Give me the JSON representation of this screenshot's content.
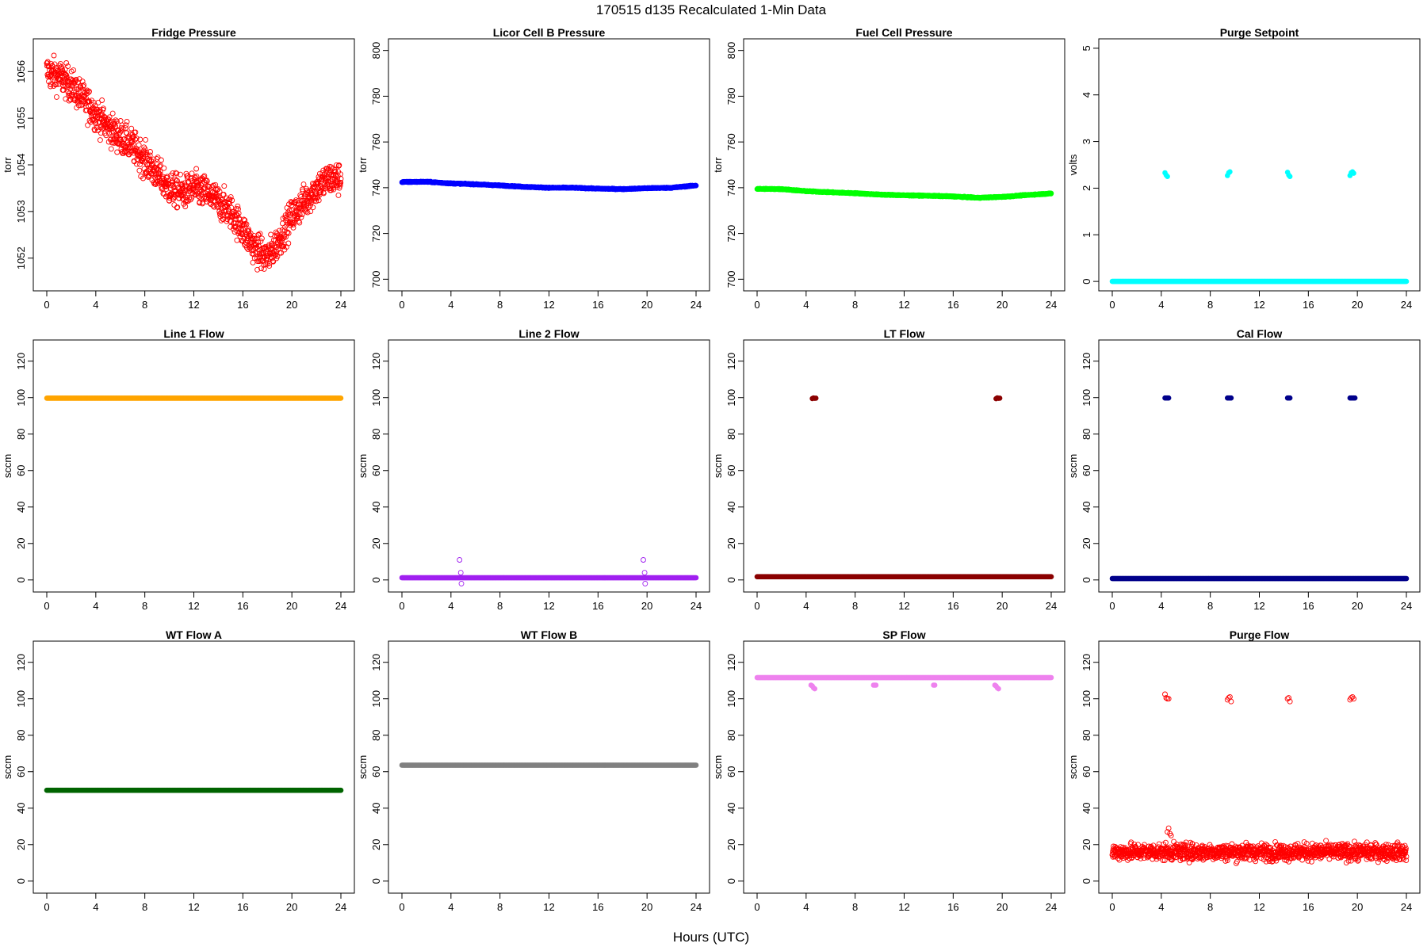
{
  "figure": {
    "title": "170515   d135   Recalculated 1-Min Data",
    "xlabel": "Hours (UTC)"
  },
  "chart_data": [
    {
      "type": "scatter",
      "title": "Fridge Pressure",
      "ylabel": "torr",
      "xlim": [
        0,
        24
      ],
      "ylim": [
        1051.4,
        1056.6
      ],
      "xticks": [
        0,
        4,
        8,
        12,
        16,
        20,
        24
      ],
      "yticks": [
        1052,
        1053,
        1054,
        1055,
        1056
      ],
      "color": "#ff0000",
      "marker": "open-circle",
      "series": [
        {
          "x": [
            0,
            1,
            2,
            3,
            4,
            5,
            6,
            7,
            8,
            9,
            10,
            11,
            12,
            13,
            14,
            15,
            16,
            17,
            18,
            19,
            20,
            21,
            22,
            23,
            24
          ],
          "y": [
            1056.0,
            1055.9,
            1055.7,
            1055.4,
            1055.1,
            1054.8,
            1054.6,
            1054.4,
            1054.1,
            1053.8,
            1053.5,
            1053.4,
            1053.5,
            1053.4,
            1053.2,
            1053.0,
            1052.6,
            1052.2,
            1052.0,
            1052.4,
            1052.9,
            1053.2,
            1053.5,
            1053.7,
            1053.7
          ],
          "scatter": 0.35
        }
      ]
    },
    {
      "type": "scatter",
      "title": "Licor Cell B Pressure",
      "ylabel": "torr",
      "xlim": [
        0,
        24
      ],
      "ylim": [
        697,
        803
      ],
      "xticks": [
        0,
        4,
        8,
        12,
        16,
        20,
        24
      ],
      "yticks": [
        700,
        720,
        740,
        760,
        780,
        800
      ],
      "color": "#0000ff",
      "marker": "filled-circle",
      "series": [
        {
          "x": [
            0,
            2,
            4,
            6,
            8,
            10,
            12,
            14,
            16,
            18,
            20,
            22,
            24
          ],
          "y": [
            742.5,
            742.6,
            741.9,
            741.5,
            741.0,
            740.4,
            740.0,
            740.0,
            739.6,
            739.4,
            739.8,
            740.0,
            741.0
          ],
          "scatter": 0.2
        }
      ]
    },
    {
      "type": "scatter",
      "title": "Fuel Cell Pressure",
      "ylabel": "torr",
      "xlim": [
        0,
        24
      ],
      "ylim": [
        697,
        803
      ],
      "xticks": [
        0,
        4,
        8,
        12,
        16,
        20,
        24
      ],
      "yticks": [
        700,
        720,
        740,
        760,
        780,
        800
      ],
      "color": "#00ff00",
      "marker": "filled-circle",
      "series": [
        {
          "x": [
            0,
            2,
            4,
            6,
            8,
            10,
            12,
            14,
            16,
            18,
            20,
            22,
            24
          ],
          "y": [
            739.5,
            739.4,
            738.5,
            738.0,
            737.6,
            737.0,
            736.7,
            736.5,
            736.2,
            735.6,
            736.0,
            736.8,
            737.5
          ],
          "scatter": 0.2
        }
      ]
    },
    {
      "type": "scatter",
      "title": "Purge Setpoint",
      "ylabel": "volts",
      "xlim": [
        0,
        24
      ],
      "ylim": [
        -0.1,
        5.1
      ],
      "xticks": [
        0,
        4,
        8,
        12,
        16,
        20,
        24
      ],
      "yticks": [
        0,
        1,
        2,
        3,
        4,
        5
      ],
      "color": "#00ffff",
      "marker": "filled-circle",
      "series": [
        {
          "x": [
            0,
            24
          ],
          "y": [
            0,
            0
          ],
          "scatter": 0
        },
        {
          "x": [
            4.3,
            4.4,
            4.5,
            9.4,
            9.5,
            9.6,
            14.3,
            14.4,
            14.5,
            19.4,
            19.5,
            19.6,
            19.7
          ],
          "y": [
            2.33,
            2.28,
            2.25,
            2.27,
            2.33,
            2.35,
            2.34,
            2.28,
            2.25,
            2.27,
            2.33,
            2.35,
            2.32
          ],
          "scatter": 0
        }
      ]
    },
    {
      "type": "scatter",
      "title": "Line 1 Flow",
      "ylabel": "sccm",
      "xlim": [
        0,
        24
      ],
      "ylim": [
        -4,
        129
      ],
      "xticks": [
        0,
        4,
        8,
        12,
        16,
        20,
        24
      ],
      "yticks": [
        0,
        20,
        40,
        60,
        80,
        100,
        120
      ],
      "color": "#ffa500",
      "marker": "filled-circle",
      "series": [
        {
          "x": [
            0,
            24
          ],
          "y": [
            99.7,
            99.7
          ],
          "scatter": 0
        }
      ]
    },
    {
      "type": "scatter",
      "title": "Line 2 Flow",
      "ylabel": "sccm",
      "xlim": [
        0,
        24
      ],
      "ylim": [
        -4,
        129
      ],
      "xticks": [
        0,
        4,
        8,
        12,
        16,
        20,
        24
      ],
      "yticks": [
        0,
        20,
        40,
        60,
        80,
        100,
        120
      ],
      "color": "#a020f0",
      "marker": "filled-circle",
      "series": [
        {
          "x": [
            0,
            24
          ],
          "y": [
            1.2,
            1.2
          ],
          "scatter": 0
        },
        {
          "x": [
            4.7,
            4.8,
            4.85,
            19.7,
            19.8,
            19.85
          ],
          "y": [
            11,
            4,
            -2,
            11,
            4,
            -2
          ],
          "scatter": 0,
          "open": true
        }
      ]
    },
    {
      "type": "scatter",
      "title": "LT Flow",
      "ylabel": "sccm",
      "xlim": [
        0,
        24
      ],
      "ylim": [
        -4,
        129
      ],
      "xticks": [
        0,
        4,
        8,
        12,
        16,
        20,
        24
      ],
      "yticks": [
        0,
        20,
        40,
        60,
        80,
        100,
        120
      ],
      "color": "#8b0000",
      "marker": "filled-circle",
      "series": [
        {
          "x": [
            0,
            24
          ],
          "y": [
            1.8,
            1.8
          ],
          "scatter": 0
        },
        {
          "x": [
            4.5,
            4.6,
            4.7,
            4.8,
            19.5,
            19.6,
            19.7,
            19.8
          ],
          "y": [
            99.5,
            99.8,
            99.6,
            99.7,
            99.4,
            99.9,
            99.6,
            99.7
          ],
          "scatter": 0
        }
      ]
    },
    {
      "type": "scatter",
      "title": "Cal Flow",
      "ylabel": "sccm",
      "xlim": [
        0,
        24
      ],
      "ylim": [
        -4,
        129
      ],
      "xticks": [
        0,
        4,
        8,
        12,
        16,
        20,
        24
      ],
      "yticks": [
        0,
        20,
        40,
        60,
        80,
        100,
        120
      ],
      "color": "#00008b",
      "marker": "filled-circle",
      "series": [
        {
          "x": [
            0,
            24
          ],
          "y": [
            0.8,
            0.8
          ],
          "scatter": 0
        },
        {
          "x": [
            4.3,
            4.4,
            4.5,
            4.6,
            9.4,
            9.5,
            9.6,
            9.7,
            14.3,
            14.4,
            14.5,
            19.4,
            19.5,
            19.6,
            19.7,
            19.8
          ],
          "y": [
            99.8,
            99.8,
            99.8,
            99.8,
            99.8,
            99.8,
            99.8,
            99.8,
            99.8,
            99.8,
            99.8,
            99.8,
            99.8,
            99.8,
            99.8,
            99.8
          ],
          "scatter": 0
        }
      ]
    },
    {
      "type": "scatter",
      "title": "WT Flow A",
      "ylabel": "sccm",
      "xlim": [
        0,
        24
      ],
      "ylim": [
        -4,
        129
      ],
      "xticks": [
        0,
        4,
        8,
        12,
        16,
        20,
        24
      ],
      "yticks": [
        0,
        20,
        40,
        60,
        80,
        100,
        120
      ],
      "color": "#006400",
      "marker": "filled-circle",
      "series": [
        {
          "x": [
            0,
            24
          ],
          "y": [
            49.8,
            49.8
          ],
          "scatter": 0
        }
      ]
    },
    {
      "type": "scatter",
      "title": "WT Flow B",
      "ylabel": "sccm",
      "xlim": [
        0,
        24
      ],
      "ylim": [
        -4,
        129
      ],
      "xticks": [
        0,
        4,
        8,
        12,
        16,
        20,
        24
      ],
      "yticks": [
        0,
        20,
        40,
        60,
        80,
        100,
        120
      ],
      "color": "#808080",
      "marker": "filled-circle",
      "series": [
        {
          "x": [
            0,
            24
          ],
          "y": [
            63.6,
            63.6
          ],
          "scatter": 0
        }
      ]
    },
    {
      "type": "scatter",
      "title": "SP Flow",
      "ylabel": "sccm",
      "xlim": [
        0,
        24
      ],
      "ylim": [
        -4,
        129
      ],
      "xticks": [
        0,
        4,
        8,
        12,
        16,
        20,
        24
      ],
      "yticks": [
        0,
        20,
        40,
        60,
        80,
        100,
        120
      ],
      "color": "#ee82ee",
      "marker": "filled-circle",
      "series": [
        {
          "x": [
            0,
            24
          ],
          "y": [
            111.6,
            111.6
          ],
          "scatter": 0
        },
        {
          "x": [
            4.4,
            4.5,
            4.6,
            4.7,
            9.5,
            9.6,
            9.7,
            14.4,
            14.5,
            19.4,
            19.5,
            19.6,
            19.7
          ],
          "y": [
            107.5,
            107,
            106,
            105.5,
            107.5,
            107.5,
            107.5,
            107.5,
            107.5,
            107.5,
            107,
            106,
            105.5
          ],
          "scatter": 0
        }
      ]
    },
    {
      "type": "scatter",
      "title": "Purge Flow",
      "ylabel": "sccm",
      "xlim": [
        0,
        24
      ],
      "ylim": [
        -4,
        129
      ],
      "xticks": [
        0,
        4,
        8,
        12,
        16,
        20,
        24
      ],
      "yticks": [
        0,
        20,
        40,
        60,
        80,
        100,
        120
      ],
      "color": "#ff0000",
      "marker": "open-circle",
      "series": [
        {
          "x": [
            0,
            24
          ],
          "y": [
            16,
            16
          ],
          "scatter": 4.5
        },
        {
          "x": [
            4.3,
            4.4,
            4.5,
            4.6,
            9.4,
            9.5,
            9.6,
            9.7,
            14.3,
            14.4,
            14.5,
            19.4,
            19.5,
            19.6,
            19.7
          ],
          "y": [
            102.5,
            100.5,
            100,
            100,
            99.5,
            100.5,
            101,
            98.5,
            100,
            100.5,
            98.5,
            99.5,
            100.5,
            101,
            100
          ],
          "scatter": 0
        },
        {
          "x": [
            4.5,
            4.6,
            4.7,
            4.8
          ],
          "y": [
            27,
            29,
            26,
            25
          ],
          "scatter": 0
        }
      ]
    }
  ]
}
